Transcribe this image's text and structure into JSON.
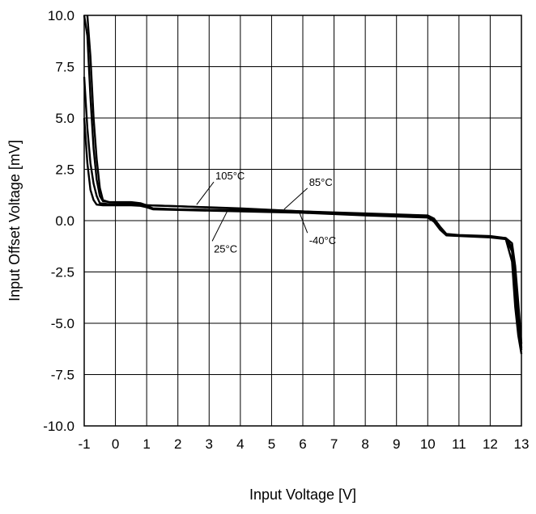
{
  "chart_data": {
    "type": "line",
    "xlabel": "Input Voltage [V]",
    "ylabel": "Input Offset Voltage [mV]",
    "xlim": [
      -1,
      13
    ],
    "ylim": [
      -10,
      10
    ],
    "xticks": [
      -1,
      0,
      1,
      2,
      3,
      4,
      5,
      6,
      7,
      8,
      9,
      10,
      11,
      12,
      13
    ],
    "xtick_labels": [
      "-1",
      "0",
      "1",
      "2",
      "3",
      "4",
      "5",
      "6",
      "7",
      "8",
      "9",
      "10",
      "11",
      "12",
      "13"
    ],
    "yticks": [
      10,
      7.5,
      5,
      2.5,
      0,
      -2.5,
      -5,
      -7.5,
      -10
    ],
    "ytick_labels": [
      "10.0",
      "7.5",
      "5.0",
      "2.5",
      "0.0",
      "-2.5",
      "-5.0",
      "-7.5",
      "-10.0"
    ],
    "grid": true,
    "series": [
      {
        "name": "105°C",
        "x": [
          -0.9,
          -0.8,
          -0.7,
          -0.6,
          -0.5,
          -0.4,
          -0.2,
          0.5,
          0.8,
          1.0,
          2.0,
          4.0,
          6.0,
          8.0,
          10.0,
          10.2,
          10.4,
          10.6,
          11.0,
          12.0,
          12.5,
          12.7,
          12.8,
          12.9,
          13.0
        ],
        "y": [
          10.0,
          8.0,
          5.0,
          3.0,
          1.6,
          1.0,
          0.9,
          0.9,
          0.85,
          0.75,
          0.7,
          0.6,
          0.45,
          0.35,
          0.25,
          0.1,
          -0.3,
          -0.65,
          -0.7,
          -0.75,
          -0.85,
          -1.1,
          -2.2,
          -4.0,
          -6.0
        ]
      },
      {
        "name": "85°C",
        "x": [
          -1.0,
          -0.9,
          -0.8,
          -0.7,
          -0.6,
          -0.5,
          -0.4,
          -0.2,
          0.5,
          0.8,
          1.0,
          2.0,
          4.0,
          6.0,
          8.0,
          10.0,
          10.2,
          10.4,
          10.6,
          11.0,
          12.0,
          12.5,
          12.7,
          12.8,
          12.9,
          13.0
        ],
        "y": [
          10.0,
          9.0,
          6.0,
          3.5,
          2.0,
          1.2,
          0.95,
          0.9,
          0.88,
          0.82,
          0.75,
          0.7,
          0.58,
          0.45,
          0.32,
          0.2,
          0.05,
          -0.35,
          -0.68,
          -0.72,
          -0.78,
          -0.85,
          -1.3,
          -2.8,
          -4.6,
          -6.2
        ]
      },
      {
        "name": "25°C",
        "x": [
          -1.0,
          -0.9,
          -0.8,
          -0.7,
          -0.6,
          -0.5,
          -0.2,
          0.5,
          0.8,
          1.0,
          1.2,
          2.0,
          4.0,
          6.0,
          8.0,
          10.0,
          10.2,
          10.4,
          10.6,
          11.0,
          12.0,
          12.5,
          12.7,
          12.8,
          12.9,
          13.0
        ],
        "y": [
          7.0,
          4.5,
          2.8,
          1.8,
          1.2,
          0.85,
          0.8,
          0.8,
          0.78,
          0.7,
          0.6,
          0.55,
          0.5,
          0.42,
          0.3,
          0.18,
          0.0,
          -0.4,
          -0.7,
          -0.72,
          -0.8,
          -0.88,
          -1.5,
          -3.5,
          -5.0,
          -6.3
        ]
      },
      {
        "name": "-40°C",
        "x": [
          -1.0,
          -0.9,
          -0.8,
          -0.7,
          -0.6,
          -0.4,
          -0.2,
          0.5,
          0.8,
          1.0,
          1.2,
          2.0,
          4.0,
          6.0,
          8.0,
          10.0,
          10.2,
          10.4,
          10.6,
          11.0,
          12.0,
          12.5,
          12.7,
          12.8,
          12.9,
          13.0
        ],
        "y": [
          5.0,
          2.8,
          1.5,
          1.0,
          0.78,
          0.75,
          0.75,
          0.75,
          0.72,
          0.65,
          0.55,
          0.52,
          0.45,
          0.38,
          0.25,
          0.15,
          -0.05,
          -0.45,
          -0.72,
          -0.75,
          -0.82,
          -0.9,
          -2.0,
          -4.2,
          -5.6,
          -6.5
        ]
      }
    ],
    "annotations": [
      {
        "text": "105°C",
        "x": 3.2,
        "y": 2.0,
        "target": [
          2.6,
          0.78
        ]
      },
      {
        "text": "85°C",
        "x": 6.2,
        "y": 1.7,
        "target": [
          5.4,
          0.55
        ]
      },
      {
        "text": "25°C",
        "x": 3.15,
        "y": -1.55,
        "target": [
          3.6,
          0.52
        ]
      },
      {
        "text": "-40°C",
        "x": 6.2,
        "y": -1.15,
        "target": [
          5.9,
          0.36
        ]
      }
    ]
  }
}
